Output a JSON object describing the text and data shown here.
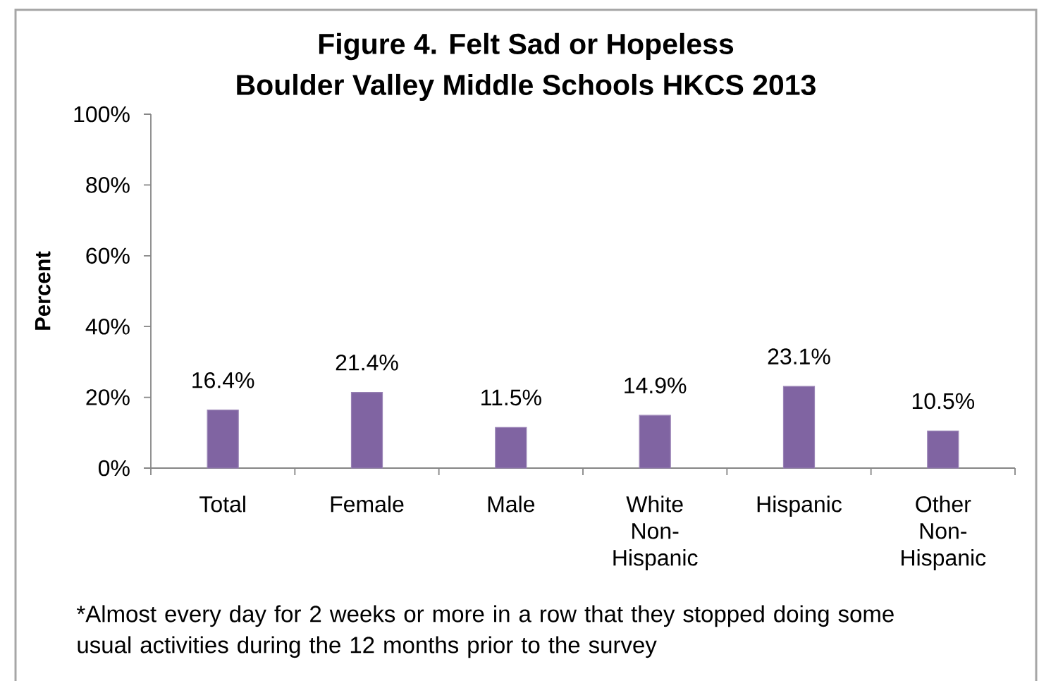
{
  "chart_data": {
    "type": "bar",
    "title": "Figure 4. Felt Sad or Hopeless",
    "subtitle": "Boulder Valley Middle Schools HKCS 2013",
    "ylabel": "Percent",
    "categories": [
      "Total",
      "Female",
      "Male",
      "White Non-Hispanic",
      "Hispanic",
      "Other Non-Hispanic"
    ],
    "values": [
      16.4,
      21.4,
      11.5,
      14.9,
      23.1,
      10.5
    ],
    "color": "#8064a2",
    "value_labels": [
      "16.4%",
      "21.4%",
      "11.5%",
      "14.9%",
      "23.1%",
      "10.5%"
    ],
    "ylim": [
      0,
      100
    ],
    "yticks": [
      {
        "value": 0,
        "label": "0%"
      },
      {
        "value": 20,
        "label": "20%"
      },
      {
        "value": 40,
        "label": "40%"
      },
      {
        "value": 60,
        "label": "60%"
      },
      {
        "value": 80,
        "label": "80%"
      },
      {
        "value": 100,
        "label": "100%"
      }
    ],
    "annotations": [
      "*Almost every day for 2 weeks or more in a row that they stopped doing some usual activities during the 12 months prior to the survey"
    ]
  }
}
